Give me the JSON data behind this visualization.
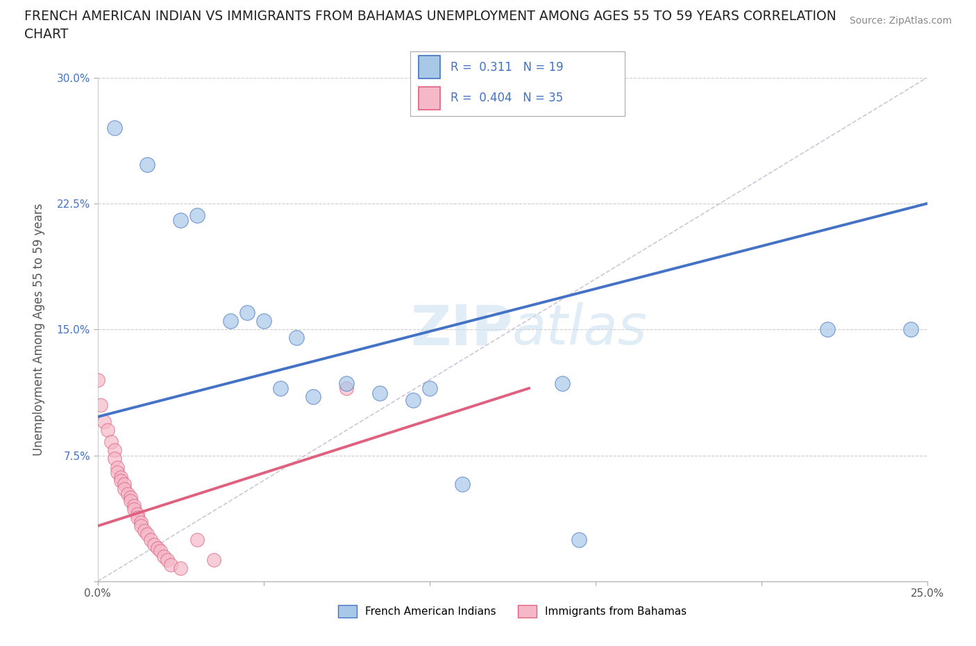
{
  "title": "FRENCH AMERICAN INDIAN VS IMMIGRANTS FROM BAHAMAS UNEMPLOYMENT AMONG AGES 55 TO 59 YEARS CORRELATION\nCHART",
  "source_text": "Source: ZipAtlas.com",
  "xlabel": "",
  "ylabel": "Unemployment Among Ages 55 to 59 years",
  "xlim": [
    0.0,
    0.25
  ],
  "ylim": [
    0.0,
    0.3
  ],
  "xticks": [
    0.0,
    0.05,
    0.1,
    0.15,
    0.2,
    0.25
  ],
  "xticklabels": [
    "0.0%",
    "",
    "",
    "",
    "",
    "25.0%"
  ],
  "yticks": [
    0.0,
    0.075,
    0.15,
    0.225,
    0.3
  ],
  "yticklabels": [
    "",
    "7.5%",
    "15.0%",
    "22.5%",
    "30.0%"
  ],
  "blue_scatter": [
    [
      0.005,
      0.27
    ],
    [
      0.015,
      0.248
    ],
    [
      0.025,
      0.215
    ],
    [
      0.03,
      0.218
    ],
    [
      0.04,
      0.155
    ],
    [
      0.045,
      0.16
    ],
    [
      0.05,
      0.155
    ],
    [
      0.055,
      0.115
    ],
    [
      0.06,
      0.145
    ],
    [
      0.065,
      0.11
    ],
    [
      0.075,
      0.118
    ],
    [
      0.085,
      0.112
    ],
    [
      0.095,
      0.108
    ],
    [
      0.1,
      0.115
    ],
    [
      0.11,
      0.058
    ],
    [
      0.14,
      0.118
    ],
    [
      0.145,
      0.025
    ],
    [
      0.22,
      0.15
    ],
    [
      0.245,
      0.15
    ]
  ],
  "pink_scatter": [
    [
      0.0,
      0.12
    ],
    [
      0.001,
      0.105
    ],
    [
      0.002,
      0.095
    ],
    [
      0.003,
      0.09
    ],
    [
      0.004,
      0.083
    ],
    [
      0.005,
      0.078
    ],
    [
      0.005,
      0.073
    ],
    [
      0.006,
      0.068
    ],
    [
      0.006,
      0.065
    ],
    [
      0.007,
      0.062
    ],
    [
      0.007,
      0.06
    ],
    [
      0.008,
      0.058
    ],
    [
      0.008,
      0.055
    ],
    [
      0.009,
      0.052
    ],
    [
      0.01,
      0.05
    ],
    [
      0.01,
      0.048
    ],
    [
      0.011,
      0.045
    ],
    [
      0.011,
      0.043
    ],
    [
      0.012,
      0.04
    ],
    [
      0.012,
      0.038
    ],
    [
      0.013,
      0.035
    ],
    [
      0.013,
      0.033
    ],
    [
      0.014,
      0.03
    ],
    [
      0.015,
      0.028
    ],
    [
      0.016,
      0.025
    ],
    [
      0.017,
      0.022
    ],
    [
      0.018,
      0.02
    ],
    [
      0.019,
      0.018
    ],
    [
      0.02,
      0.015
    ],
    [
      0.021,
      0.013
    ],
    [
      0.022,
      0.01
    ],
    [
      0.025,
      0.008
    ],
    [
      0.03,
      0.025
    ],
    [
      0.035,
      0.013
    ],
    [
      0.075,
      0.115
    ]
  ],
  "blue_line": [
    [
      0.0,
      0.098
    ],
    [
      0.25,
      0.225
    ]
  ],
  "pink_line": [
    [
      0.0,
      0.033
    ],
    [
      0.13,
      0.115
    ]
  ],
  "blue_R": 0.311,
  "blue_N": 19,
  "pink_R": 0.404,
  "pink_N": 35,
  "blue_color": "#a8c8e8",
  "pink_color": "#f4b8c8",
  "blue_line_color": "#4472c4",
  "pink_line_color": "#e06080",
  "dashed_line_color": "#c0b8d0",
  "legend_blue_label": "French American Indians",
  "legend_pink_label": "Immigrants from Bahamas",
  "watermark_zip": "ZIP",
  "watermark_atlas": "atlas",
  "background_color": "#ffffff"
}
